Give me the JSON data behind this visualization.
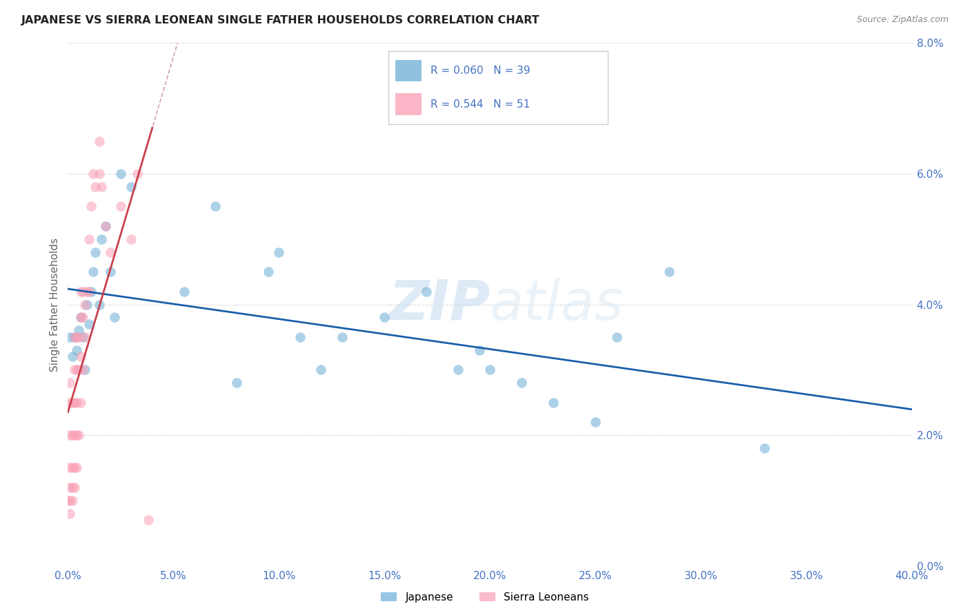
{
  "title": "JAPANESE VS SIERRA LEONEAN SINGLE FATHER HOUSEHOLDS CORRELATION CHART",
  "source": "Source: ZipAtlas.com",
  "ylabel": "Single Father Households",
  "watermark": "ZIPatlas",
  "legend_japanese": {
    "R": 0.06,
    "N": 39,
    "color": "#6baed6"
  },
  "legend_sierra": {
    "R": 0.544,
    "N": 51,
    "color": "#fa9fb5"
  },
  "japanese_x": [
    0.001,
    0.002,
    0.003,
    0.004,
    0.005,
    0.006,
    0.007,
    0.008,
    0.009,
    0.01,
    0.011,
    0.012,
    0.013,
    0.015,
    0.016,
    0.018,
    0.02,
    0.022,
    0.025,
    0.03,
    0.055,
    0.07,
    0.08,
    0.095,
    0.1,
    0.11,
    0.12,
    0.13,
    0.15,
    0.17,
    0.185,
    0.195,
    0.2,
    0.215,
    0.23,
    0.25,
    0.26,
    0.285,
    0.33
  ],
  "japanese_y": [
    0.035,
    0.032,
    0.035,
    0.033,
    0.036,
    0.038,
    0.035,
    0.03,
    0.04,
    0.037,
    0.042,
    0.045,
    0.048,
    0.04,
    0.05,
    0.052,
    0.045,
    0.038,
    0.06,
    0.058,
    0.042,
    0.055,
    0.028,
    0.045,
    0.048,
    0.035,
    0.03,
    0.035,
    0.038,
    0.042,
    0.03,
    0.033,
    0.03,
    0.028,
    0.025,
    0.022,
    0.035,
    0.045,
    0.018
  ],
  "sierra_x": [
    0.0,
    0.001,
    0.001,
    0.001,
    0.001,
    0.001,
    0.001,
    0.001,
    0.002,
    0.002,
    0.002,
    0.002,
    0.002,
    0.003,
    0.003,
    0.003,
    0.003,
    0.003,
    0.003,
    0.004,
    0.004,
    0.004,
    0.004,
    0.004,
    0.005,
    0.005,
    0.005,
    0.006,
    0.006,
    0.006,
    0.006,
    0.007,
    0.007,
    0.007,
    0.008,
    0.008,
    0.009,
    0.01,
    0.01,
    0.011,
    0.012,
    0.013,
    0.015,
    0.015,
    0.016,
    0.018,
    0.02,
    0.025,
    0.03,
    0.033,
    0.038
  ],
  "sierra_y": [
    0.01,
    0.008,
    0.01,
    0.012,
    0.015,
    0.02,
    0.025,
    0.028,
    0.01,
    0.012,
    0.015,
    0.02,
    0.025,
    0.012,
    0.015,
    0.02,
    0.025,
    0.03,
    0.035,
    0.015,
    0.02,
    0.025,
    0.03,
    0.035,
    0.02,
    0.03,
    0.035,
    0.025,
    0.032,
    0.038,
    0.042,
    0.03,
    0.038,
    0.042,
    0.035,
    0.04,
    0.042,
    0.042,
    0.05,
    0.055,
    0.06,
    0.058,
    0.06,
    0.065,
    0.058,
    0.052,
    0.048,
    0.055,
    0.05,
    0.06,
    0.007
  ],
  "xlim": [
    0.0,
    0.4
  ],
  "ylim": [
    0.0,
    0.08
  ],
  "xticks": [
    0.0,
    0.05,
    0.1,
    0.15,
    0.2,
    0.25,
    0.3,
    0.35,
    0.4
  ],
  "yticks": [
    0.0,
    0.02,
    0.04,
    0.06,
    0.08
  ],
  "bg_color": "#ffffff",
  "dot_alpha": 0.55,
  "dot_size": 110,
  "trendline_japanese_color": "#1a5fa8",
  "trendline_sierra_color": "#c9404d",
  "trendline_dashed_color": "#d4a0b0",
  "tick_color": "#4472c4",
  "grid_color": "#dddddd",
  "ylabel_color": "#666666"
}
